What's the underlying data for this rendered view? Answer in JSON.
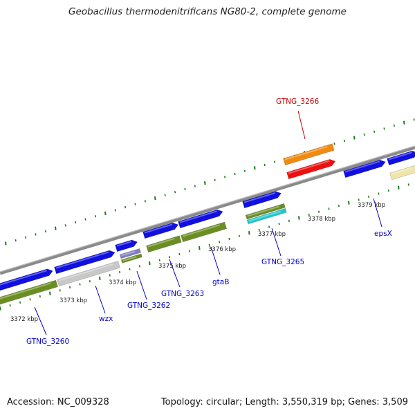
{
  "title": "Geobacillus thermodenitrificans NG80-2, complete genome",
  "footer": {
    "accession": "Accession: NC_009328",
    "summary": "Topology: circular; Length: 3,550,319 bp; Genes: 3,509"
  },
  "colors": {
    "backbone": "#8a8a8a",
    "ticks": "#1a7a1a",
    "gene_blue": "#1010e0",
    "gene_olive": "#6b8e23",
    "gene_gray": "#c8c8c8",
    "gene_cyan": "#20c8d0",
    "gene_orange": "#f08a10",
    "gene_red": "#ee1010",
    "gene_yellow": "#f0e6a8",
    "gene_purple": "#8080c0",
    "label_blue": "#0000cc",
    "label_red": "#cc0000"
  },
  "kbp_labels": [
    "3372 kbp",
    "3373 kbp",
    "3374 kbp",
    "3375 kbp",
    "3376 kbp",
    "3377 kbp",
    "3378 kbp",
    "3379 kbp"
  ],
  "gene_labels": [
    {
      "text": "GTNG_3260",
      "color": "label_blue"
    },
    {
      "text": "wzx",
      "color": "label_blue"
    },
    {
      "text": "GTNG_3262",
      "color": "label_blue"
    },
    {
      "text": "GTNG_3263",
      "color": "label_blue"
    },
    {
      "text": "gtaB",
      "color": "label_blue"
    },
    {
      "text": "GTNG_3265",
      "color": "label_blue"
    },
    {
      "text": "epsX",
      "color": "label_blue"
    },
    {
      "text": "GTNG_3266",
      "color": "label_red"
    }
  ]
}
